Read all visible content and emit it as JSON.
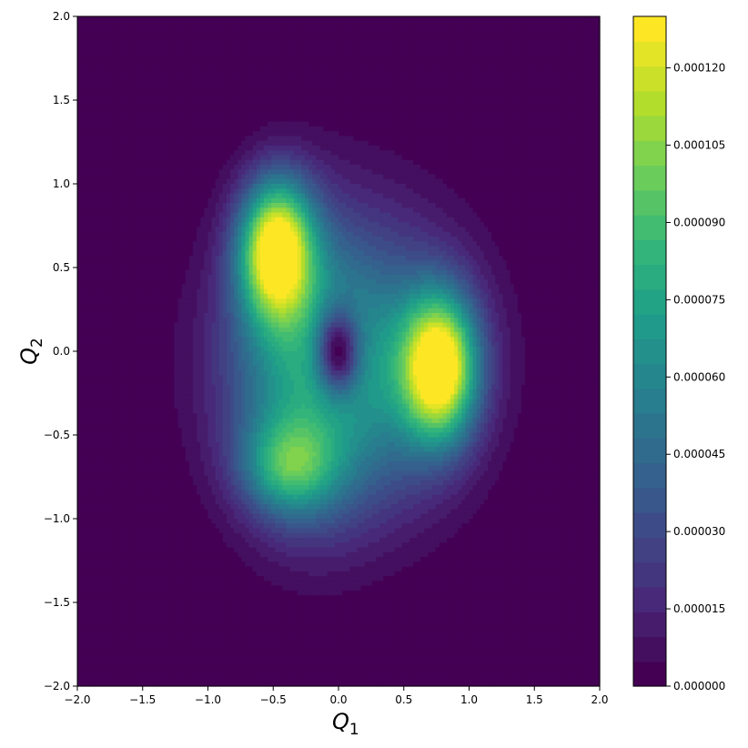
{
  "chart_data": {
    "type": "filled-contour",
    "colormap": "viridis",
    "colors": {
      "background": "#ffffff",
      "low": "#440154",
      "mid": "#21918c",
      "high": "#fde725"
    },
    "x_axis": {
      "label": "Q",
      "label_subscript": "1",
      "range": [
        -2.0,
        2.0
      ],
      "ticks": [
        -2.0,
        -1.5,
        -1.0,
        -0.5,
        0.0,
        0.5,
        1.0,
        1.5,
        2.0
      ],
      "tick_labels": [
        "−2.0",
        "−1.5",
        "−1.0",
        "−0.5",
        "0.0",
        "0.5",
        "1.0",
        "1.5",
        "2.0"
      ]
    },
    "y_axis": {
      "label": "Q",
      "label_subscript": "2",
      "range": [
        -2.0,
        2.0
      ],
      "ticks": [
        -2.0,
        -1.5,
        -1.0,
        -0.5,
        0.0,
        0.5,
        1.0,
        1.5,
        2.0
      ],
      "tick_labels": [
        "−2.0",
        "−1.5",
        "−1.0",
        "−0.5",
        "0.0",
        "0.5",
        "1.0",
        "1.5",
        "2.0"
      ]
    },
    "colorbar": {
      "range": [
        0.0,
        0.00013
      ],
      "levels": 27,
      "ticks": [
        0.0,
        1.5e-05,
        3e-05,
        4.5e-05,
        6e-05,
        7.5e-05,
        9e-05,
        0.000105,
        0.00012
      ],
      "tick_labels": [
        "0.000000",
        "0.000015",
        "0.000030",
        "0.000045",
        "0.000060",
        "0.000075",
        "0.000090",
        "0.000105",
        "0.000120"
      ]
    },
    "peaks": [
      {
        "x": -0.48,
        "y": 0.62,
        "value": 0.000127
      },
      {
        "x": 0.78,
        "y": -0.1,
        "value": 0.000124
      },
      {
        "x": -0.38,
        "y": -0.7,
        "value": 7.3e-05
      }
    ],
    "minimum": {
      "x": 0.0,
      "y": 0.0,
      "value": 2e-06
    },
    "grid": false
  }
}
